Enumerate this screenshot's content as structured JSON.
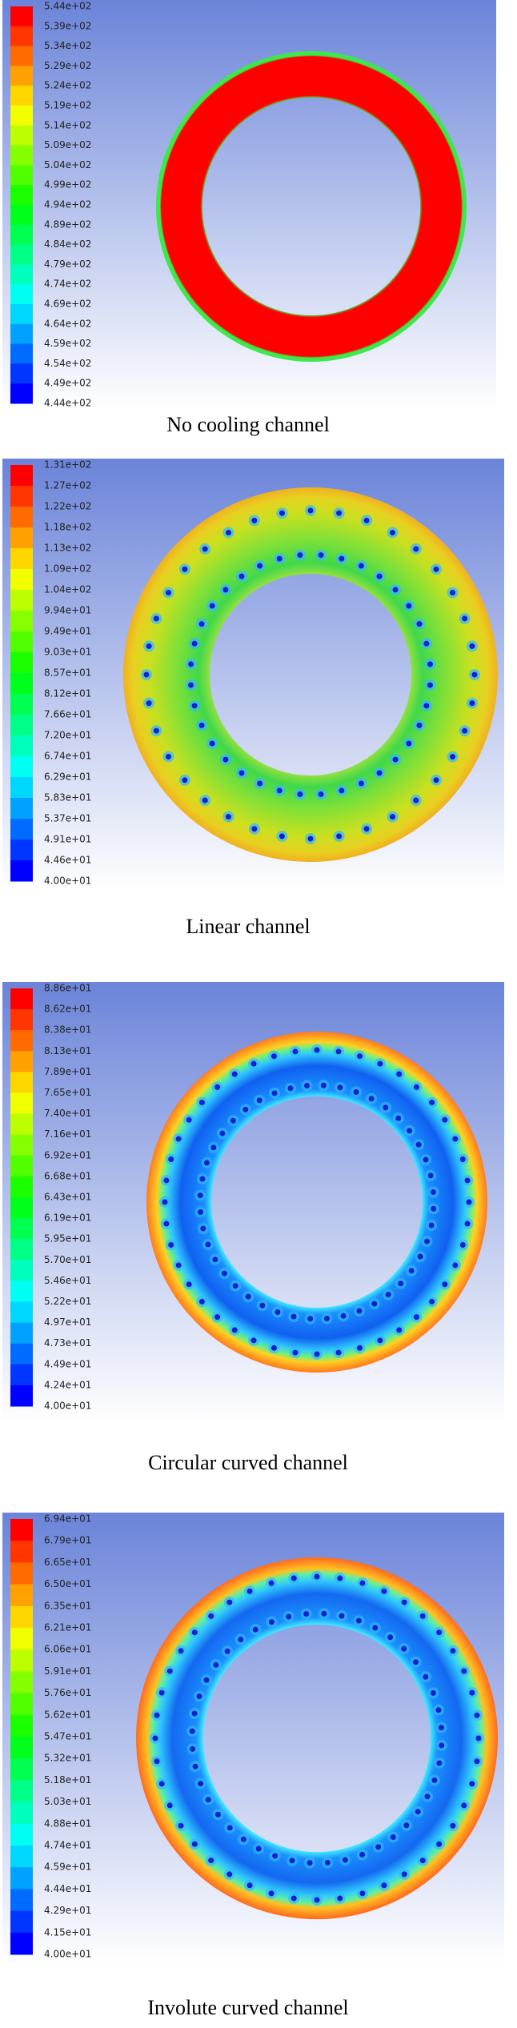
{
  "panels": [
    {
      "colorbar_labels": [
        "5.44e+02",
        "5.39e+02",
        "5.34e+02",
        "5.29e+02",
        "5.24e+02",
        "5.19e+02",
        "5.14e+02",
        "5.09e+02",
        "5.04e+02",
        "4.99e+02",
        "4.94e+02",
        "4.89e+02",
        "4.84e+02",
        "4.79e+02",
        "4.74e+02",
        "4.69e+02",
        "4.64e+02",
        "4.59e+02",
        "4.54e+02",
        "4.49e+02",
        "4.44e+02"
      ],
      "caption": "No cooling channel"
    },
    {
      "colorbar_labels": [
        "1.31e+02",
        "1.27e+02",
        "1.22e+02",
        "1.18e+02",
        "1.13e+02",
        "1.09e+02",
        "1.04e+02",
        "9.94e+01",
        "9.49e+01",
        "9.03e+01",
        "8.57e+01",
        "8.12e+01",
        "7.66e+01",
        "7.20e+01",
        "6.74e+01",
        "6.29e+01",
        "5.83e+01",
        "5.37e+01",
        "4.91e+01",
        "4.46e+01",
        "4.00e+01"
      ],
      "caption": "Linear channel"
    },
    {
      "colorbar_labels": [
        "8.86e+01",
        "8.62e+01",
        "8.38e+01",
        "8.13e+01",
        "7.89e+01",
        "7.65e+01",
        "7.40e+01",
        "7.16e+01",
        "6.92e+01",
        "6.68e+01",
        "6.43e+01",
        "6.19e+01",
        "5.95e+01",
        "5.70e+01",
        "5.46e+01",
        "5.22e+01",
        "4.97e+01",
        "4.73e+01",
        "4.49e+01",
        "4.24e+01",
        "4.00e+01"
      ],
      "caption": "Circular curved channel"
    },
    {
      "colorbar_labels": [
        "6.94e+01",
        "6.79e+01",
        "6.65e+01",
        "6.50e+01",
        "6.35e+01",
        "6.21e+01",
        "6.06e+01",
        "5.91e+01",
        "5.76e+01",
        "5.62e+01",
        "5.47e+01",
        "5.32e+01",
        "5.18e+01",
        "5.03e+01",
        "4.88e+01",
        "4.74e+01",
        "4.59e+01",
        "4.44e+01",
        "4.29e+01",
        "4.15e+01",
        "4.00e+01"
      ],
      "caption": "Involute curved channel"
    }
  ]
}
